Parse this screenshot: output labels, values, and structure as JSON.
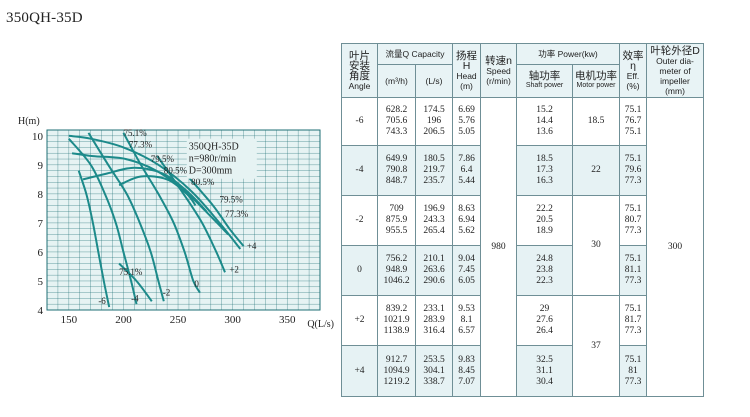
{
  "model_title": "350QH-35D",
  "chart_data": {
    "type": "line",
    "title": "",
    "xlabel": "Q(L/s)",
    "ylabel": "H(m)",
    "xlim": [
      130,
      380
    ],
    "ylim": [
      4,
      10.2
    ],
    "x_ticks": [
      150,
      200,
      250,
      300,
      350
    ],
    "y_ticks": [
      4,
      5,
      6,
      7,
      8,
      9,
      10
    ],
    "grid": true,
    "annotation_box": [
      "350QH-35D",
      "n=980r/min",
      "D=300mm"
    ],
    "series": [
      {
        "name": "-6",
        "points": [
          [
            159,
            8.8
          ],
          [
            166,
            8.0
          ],
          [
            172,
            7.0
          ],
          [
            177,
            6.0
          ],
          [
            182,
            5.0
          ],
          [
            187,
            4.1
          ]
        ]
      },
      {
        "name": "-4",
        "points": [
          [
            150,
            9.9
          ],
          [
            170,
            9.0
          ],
          [
            183,
            8.0
          ],
          [
            193,
            7.0
          ],
          [
            200,
            6.0
          ],
          [
            207,
            5.0
          ],
          [
            212,
            4.2
          ]
        ]
      },
      {
        "name": "-2",
        "points": [
          [
            168,
            10.1
          ],
          [
            186,
            9.0
          ],
          [
            203,
            8.0
          ],
          [
            215,
            7.0
          ],
          [
            225,
            6.0
          ],
          [
            232,
            5.0
          ],
          [
            237,
            4.3
          ]
        ]
      },
      {
        "name": "0",
        "points": [
          [
            200,
            10.1
          ],
          [
            216,
            9.0
          ],
          [
            232,
            8.0
          ],
          [
            246,
            7.0
          ],
          [
            256,
            6.0
          ],
          [
            264,
            5.0
          ],
          [
            270,
            4.6
          ]
        ]
      },
      {
        "name": "+2",
        "points": [
          [
            231,
            9.3
          ],
          [
            255,
            8.0
          ],
          [
            272,
            7.0
          ],
          [
            285,
            6.0
          ],
          [
            293,
            5.3
          ]
        ]
      },
      {
        "name": "+4",
        "points": [
          [
            259,
            8.6
          ],
          [
            282,
            7.6
          ],
          [
            297,
            6.8
          ],
          [
            310,
            6.2
          ]
        ]
      }
    ],
    "efficiency_contours": [
      {
        "label": "75.1%",
        "points": [
          [
            150,
            10.0
          ],
          [
            170,
            9.9
          ],
          [
            200,
            9.6
          ],
          [
            232,
            9.0
          ],
          [
            262,
            8.1
          ],
          [
            288,
            7.0
          ],
          [
            307,
            6.1
          ]
        ]
      },
      {
        "label": "77.3%",
        "points": [
          [
            153,
            9.4
          ],
          [
            172,
            9.3
          ],
          [
            202,
            9.2
          ],
          [
            230,
            8.8
          ],
          [
            256,
            8.1
          ],
          [
            278,
            7.3
          ],
          [
            296,
            6.6
          ]
        ]
      },
      {
        "label": "79.5%",
        "points": [
          [
            163,
            8.5
          ],
          [
            185,
            8.7
          ],
          [
            210,
            8.9
          ],
          [
            236,
            8.7
          ],
          [
            258,
            8.1
          ],
          [
            276,
            7.4
          ]
        ]
      },
      {
        "label": "80.5%",
        "points": [
          [
            196,
            8.3
          ],
          [
            216,
            8.6
          ],
          [
            240,
            8.5
          ],
          [
            258,
            8.0
          ],
          [
            266,
            7.6
          ]
        ]
      },
      {
        "label": "75.1%",
        "points": [
          [
            196,
            5.6
          ],
          [
            212,
            5.0
          ],
          [
            226,
            4.3
          ]
        ]
      }
    ],
    "efficiency_labels": [
      {
        "text": "75.1%",
        "x": 200,
        "y": 10.0
      },
      {
        "text": "77.3%",
        "x": 205,
        "y": 9.6
      },
      {
        "text": "79.5%",
        "x": 225,
        "y": 9.1
      },
      {
        "text": "80.5%",
        "x": 237,
        "y": 8.7
      },
      {
        "text": "80.5%",
        "x": 262,
        "y": 8.3
      },
      {
        "text": "79.5%",
        "x": 288,
        "y": 7.7
      },
      {
        "text": "77.3%",
        "x": 293,
        "y": 7.2
      },
      {
        "text": "75.1%",
        "x": 196,
        "y": 5.2
      }
    ],
    "curve_labels": [
      {
        "text": "-6",
        "x": 177,
        "y": 4.2
      },
      {
        "text": "-4",
        "x": 207,
        "y": 4.3
      },
      {
        "text": "-2",
        "x": 236,
        "y": 4.5
      },
      {
        "text": "0",
        "x": 265,
        "y": 4.8
      },
      {
        "text": "+2",
        "x": 297,
        "y": 5.3
      },
      {
        "text": "+4",
        "x": 313,
        "y": 6.1
      }
    ],
    "colors": {
      "grid": "#1f6f74",
      "curve": "#1c8a8a",
      "fill": "#e6f3f3"
    }
  },
  "table": {
    "headers": {
      "angle": [
        "叶片",
        "安装",
        "角度",
        "Angle"
      ],
      "capacity_title": "流量Q Capacity",
      "capacity_unit_m3h": "(m³/h)",
      "capacity_unit_ls": "(L/s)",
      "head": [
        "扬程H",
        "Head",
        "(m)"
      ],
      "speed": [
        "转速n",
        "Speed",
        "(r/min)"
      ],
      "power_title": "功率 Power(kw)",
      "shaft_power": [
        "轴功率",
        "Shaft power"
      ],
      "motor_power": [
        "电机功率",
        "Motor power"
      ],
      "efficiency": [
        "效率η",
        "Eff.",
        "(%)"
      ],
      "impeller": [
        "叶轮外径D",
        "Outer dia-",
        "meter of",
        "impeller",
        "(mm)"
      ]
    },
    "speed": "980",
    "impeller": "300",
    "rows": [
      {
        "angle": "-6",
        "q_m3h": [
          "628.2",
          "705.6",
          "743.3"
        ],
        "q_ls": [
          "174.5",
          "196",
          "206.5"
        ],
        "head": [
          "6.69",
          "5.76",
          "5.05"
        ],
        "shaft": [
          "15.2",
          "14.4",
          "13.6"
        ],
        "motor": "18.5",
        "eff": [
          "75.1",
          "76.7",
          "75.1"
        ]
      },
      {
        "angle": "-4",
        "q_m3h": [
          "649.9",
          "790.8",
          "848.7"
        ],
        "q_ls": [
          "180.5",
          "219.7",
          "235.7"
        ],
        "head": [
          "7.86",
          "6.4",
          "5.44"
        ],
        "shaft": [
          "18.5",
          "17.3",
          "16.3"
        ],
        "motor": "22",
        "eff": [
          "75.1",
          "79.6",
          "77.3"
        ]
      },
      {
        "angle": "-2",
        "q_m3h": [
          "709",
          "875.9",
          "955.5"
        ],
        "q_ls": [
          "196.9",
          "243.3",
          "265.4"
        ],
        "head": [
          "8.63",
          "6.94",
          "5.62"
        ],
        "shaft": [
          "22.2",
          "20.5",
          "18.9"
        ],
        "eff": [
          "75.1",
          "80.7",
          "77.3"
        ]
      },
      {
        "angle": "0",
        "q_m3h": [
          "756.2",
          "948.9",
          "1046.2"
        ],
        "q_ls": [
          "210.1",
          "263.6",
          "290.6"
        ],
        "head": [
          "9.04",
          "7.45",
          "6.05"
        ],
        "shaft": [
          "24.8",
          "23.8",
          "22.3"
        ],
        "eff": [
          "75.1",
          "81.1",
          "77.3"
        ]
      },
      {
        "angle": "+2",
        "q_m3h": [
          "839.2",
          "1021.9",
          "1138.9"
        ],
        "q_ls": [
          "233.1",
          "283.9",
          "316.4"
        ],
        "head": [
          "9.53",
          "8.1",
          "6.57"
        ],
        "shaft": [
          "29",
          "27.6",
          "26.4"
        ],
        "eff": [
          "75.1",
          "81.7",
          "77.3"
        ]
      },
      {
        "angle": "+4",
        "q_m3h": [
          "912.7",
          "1094.9",
          "1219.2"
        ],
        "q_ls": [
          "253.5",
          "304.1",
          "338.7"
        ],
        "head": [
          "9.83",
          "8.45",
          "7.07"
        ],
        "shaft": [
          "32.5",
          "31.1",
          "30.4"
        ],
        "eff": [
          "75.1",
          "81",
          "77.3"
        ]
      }
    ],
    "motor_merged": [
      {
        "value": "30",
        "rows": [
          2,
          3
        ]
      },
      {
        "value": "37",
        "rows": [
          4,
          5
        ]
      }
    ]
  }
}
